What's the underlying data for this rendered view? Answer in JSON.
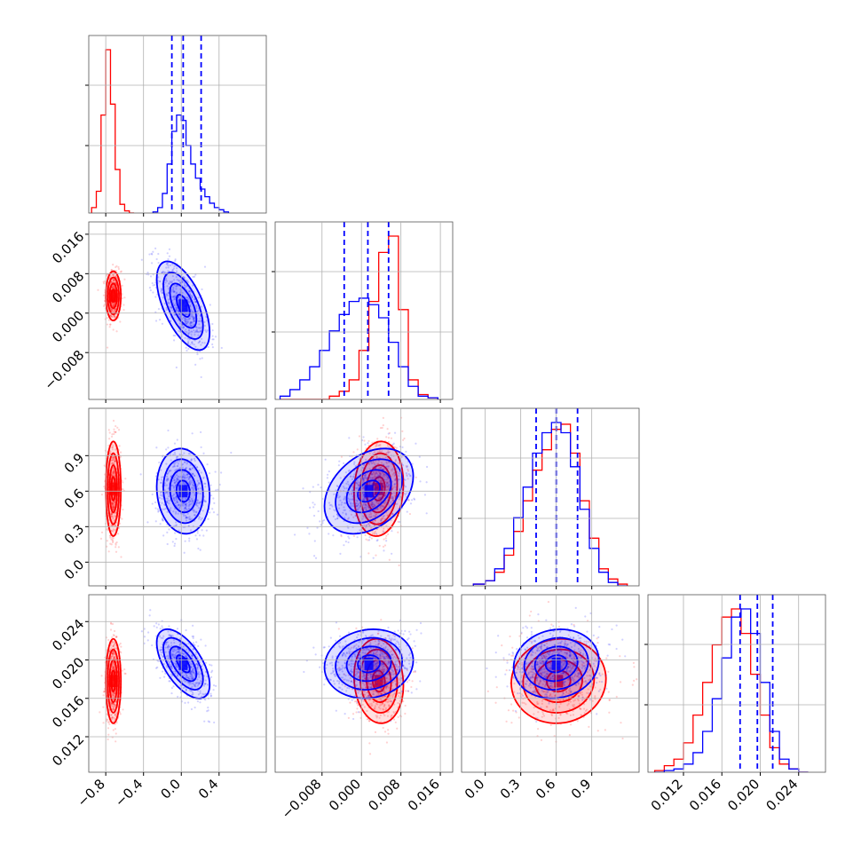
{
  "figure": {
    "type": "corner-plot"
  },
  "chart_data": {
    "type": "corner",
    "params": [
      {
        "range": [
          -0.98,
          0.9
        ],
        "ticks": [
          -0.8,
          -0.4,
          0.0,
          0.4
        ],
        "tick_labels": [
          "−0.8",
          "−0.4",
          "0.0",
          "0.4"
        ]
      },
      {
        "range": [
          -0.0175,
          0.0185
        ],
        "ticks": [
          -0.008,
          0.0,
          0.008,
          0.016
        ],
        "tick_labels": [
          "−0.008",
          "0.000",
          "0.008",
          "0.016"
        ]
      },
      {
        "range": [
          -0.2,
          1.3
        ],
        "ticks": [
          0.0,
          0.3,
          0.6,
          0.9
        ],
        "tick_labels": [
          "0.0",
          "0.3",
          "0.6",
          "0.9"
        ]
      },
      {
        "range": [
          0.0083,
          0.0268
        ],
        "ticks": [
          0.012,
          0.016,
          0.02,
          0.024
        ],
        "tick_labels": [
          "0.012",
          "0.016",
          "0.020",
          "0.024"
        ]
      }
    ],
    "series": [
      {
        "name": "",
        "color": "#ff0000",
        "hist": [
          {
            "edges": [
              -0.95,
              -0.9,
              -0.85,
              -0.8,
              -0.75,
              -0.7,
              -0.65,
              -0.6,
              -0.55,
              -0.5
            ],
            "counts": [
              0.05,
              0.2,
              0.9,
              1.5,
              1.0,
              0.4,
              0.08,
              0.02,
              0.0
            ]
          },
          {
            "edges": [
              -0.0165,
              -0.0145,
              -0.0125,
              -0.0105,
              -0.0085,
              -0.0065,
              -0.0045,
              -0.0025,
              -0.0005,
              0.0015,
              0.0035,
              0.0055,
              0.0075,
              0.0095,
              0.0115,
              0.0135,
              0.0155
            ],
            "counts": [
              0.0,
              0.0,
              0.0,
              0.0,
              0.0,
              0.02,
              0.05,
              0.12,
              0.3,
              0.6,
              0.9,
              1.0,
              0.55,
              0.12,
              0.03,
              0.01
            ]
          },
          {
            "edges": [
              -0.1,
              0.0,
              0.08,
              0.16,
              0.24,
              0.32,
              0.4,
              0.48,
              0.56,
              0.64,
              0.72,
              0.8,
              0.88,
              0.96,
              1.04,
              1.12,
              1.2
            ],
            "counts": [
              0.01,
              0.03,
              0.08,
              0.18,
              0.32,
              0.5,
              0.68,
              0.8,
              0.92,
              0.95,
              0.78,
              0.5,
              0.28,
              0.1,
              0.04,
              0.01
            ]
          },
          {
            "edges": [
              0.009,
              0.01,
              0.011,
              0.012,
              0.013,
              0.014,
              0.015,
              0.016,
              0.017,
              0.018,
              0.019,
              0.02,
              0.021,
              0.022,
              0.023,
              0.024,
              0.025
            ],
            "counts": [
              0.01,
              0.04,
              0.08,
              0.18,
              0.35,
              0.55,
              0.78,
              0.95,
              1.0,
              0.85,
              0.6,
              0.35,
              0.15,
              0.05,
              0.02,
              0.0
            ]
          }
        ],
        "mean": [
          -0.72,
          0.0035,
          0.62,
          0.0178
        ],
        "std": [
          0.04,
          0.0025,
          0.2,
          0.0022
        ],
        "corr": [
          [
            1,
            0,
            0,
            0
          ],
          [
            0,
            1,
            0.1,
            -0.1
          ],
          [
            0,
            0.1,
            1,
            0.05
          ],
          [
            0,
            -0.1,
            0.05,
            1
          ]
        ]
      },
      {
        "name": "",
        "color": "#0000ff",
        "hist": [
          {
            "edges": [
              -0.3,
              -0.25,
              -0.2,
              -0.15,
              -0.1,
              -0.05,
              0.0,
              0.05,
              0.1,
              0.15,
              0.2,
              0.25,
              0.3,
              0.35,
              0.4,
              0.45,
              0.5
            ],
            "counts": [
              0.01,
              0.05,
              0.18,
              0.45,
              0.75,
              0.9,
              0.85,
              0.62,
              0.45,
              0.32,
              0.22,
              0.15,
              0.09,
              0.05,
              0.03,
              0.01
            ]
          },
          {
            "edges": [
              -0.0165,
              -0.0145,
              -0.0125,
              -0.0105,
              -0.0085,
              -0.0065,
              -0.0045,
              -0.0025,
              -0.0005,
              0.0015,
              0.0035,
              0.0055,
              0.0075,
              0.0095,
              0.0115,
              0.0135,
              0.0155
            ],
            "counts": [
              0.02,
              0.06,
              0.12,
              0.2,
              0.3,
              0.42,
              0.52,
              0.6,
              0.62,
              0.58,
              0.5,
              0.35,
              0.2,
              0.08,
              0.02,
              0.01
            ]
          },
          {
            "edges": [
              -0.1,
              0.0,
              0.08,
              0.16,
              0.24,
              0.32,
              0.4,
              0.48,
              0.56,
              0.64,
              0.72,
              0.8,
              0.88,
              0.96,
              1.04,
              1.12,
              1.2
            ],
            "counts": [
              0.01,
              0.03,
              0.1,
              0.22,
              0.4,
              0.58,
              0.78,
              0.9,
              0.96,
              0.9,
              0.7,
              0.45,
              0.22,
              0.08,
              0.02,
              0.0
            ]
          },
          {
            "edges": [
              0.009,
              0.01,
              0.011,
              0.012,
              0.013,
              0.014,
              0.015,
              0.016,
              0.017,
              0.018,
              0.019,
              0.02,
              0.021,
              0.022,
              0.023,
              0.024,
              0.025
            ],
            "counts": [
              0.0,
              0.01,
              0.02,
              0.05,
              0.12,
              0.25,
              0.45,
              0.7,
              0.95,
              1.0,
              0.85,
              0.55,
              0.25,
              0.08,
              0.02,
              0.0
            ]
          }
        ],
        "mean": [
          0.02,
          0.0015,
          0.6,
          0.0196
        ],
        "std": [
          0.14,
          0.0045,
          0.18,
          0.0018
        ],
        "corr": [
          [
            1,
            -0.6,
            -0.1,
            -0.6
          ],
          [
            -0.6,
            1,
            0.35,
            0.1
          ],
          [
            -0.1,
            0.35,
            1,
            0.1
          ],
          [
            -0.6,
            0.1,
            0.1,
            1
          ]
        ]
      }
    ],
    "quantiles": {
      "color": "#0000ff",
      "values": [
        [
          -0.1,
          0.02,
          0.21
        ],
        [
          -0.0035,
          0.0013,
          0.0055
        ],
        [
          0.43,
          0.6,
          0.78
        ],
        [
          0.0179,
          0.0197,
          0.0213
        ]
      ]
    },
    "grid": true,
    "contour_levels": [
      0.5,
      1.0,
      1.5,
      2.0
    ]
  }
}
